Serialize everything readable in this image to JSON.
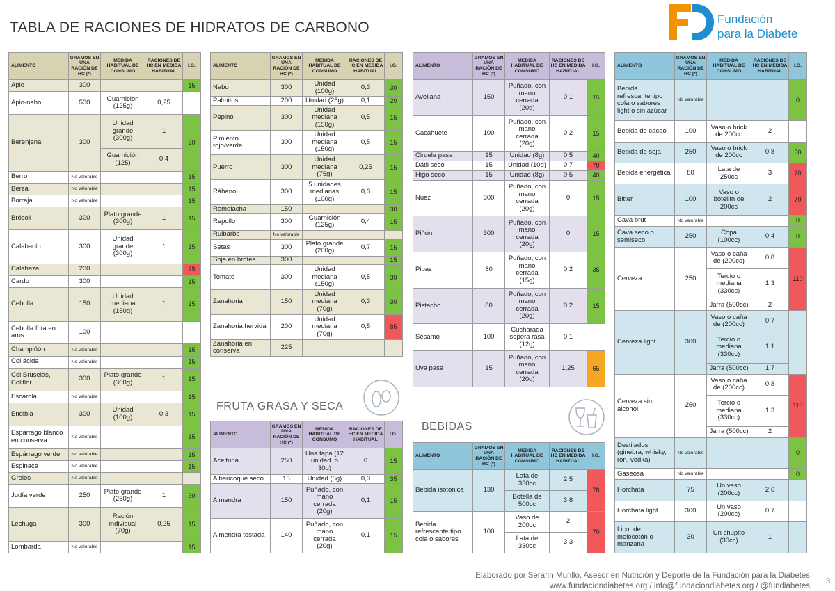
{
  "title": "TABLA DE RACIONES DE HIDRATOS DE CARBONO",
  "logo": {
    "line1": "Fundación",
    "line2": "para la Diabetes"
  },
  "fruit_title": "FRUTA GRASA Y SECA",
  "drinks_title": "BEBIDAS",
  "footer": {
    "line1": "Elaborado por Serafín Murillo, Asesor en Nutrición y Deporte de la Fundación para la Diabetes",
    "line2": "www.fundaciondiabetes.org / info@fundaciondiabetes.org / @fundiabetes",
    "page": "3"
  },
  "tables": [
    {
      "theme": "veg",
      "columns": [
        "ALIMENTO",
        "GRAMOS EN UNA RACIÓN DE HC (*)",
        "MEDIDA HABITUAL DE CONSUMO",
        "RACIONES DE HC EN MEDIDA HABITUAL",
        "I.G."
      ],
      "rows": [
        {
          "name": "Apio",
          "grams": 300,
          "measures": [],
          "ig": 15
        },
        {
          "name": "Apio-nabo",
          "grams": 500,
          "measures": [
            {
              "measure": "Guarnición (125g)",
              "rations": "0,25"
            }
          ],
          "ig": null
        },
        {
          "name": "Berenjena",
          "grams": 300,
          "measures": [
            {
              "measure": "Unidad grande (300g)",
              "rations": "1"
            },
            {
              "measure": "Guarnición (125)",
              "rations": "0,4"
            }
          ],
          "ig": 20
        },
        {
          "name": "Berro",
          "grams": "No valorable",
          "measures": [],
          "ig": 15
        },
        {
          "name": "Berza",
          "grams": "No valorable",
          "measures": [],
          "ig": 15
        },
        {
          "name": "Borraja",
          "grams": "No valorable",
          "measures": [],
          "ig": 15
        },
        {
          "name": "Brócoli",
          "grams": 300,
          "measures": [
            {
              "measure": "Plato grande (300g)",
              "rations": "1"
            }
          ],
          "ig": 15
        },
        {
          "name": "Calabacín",
          "grams": 300,
          "measures": [
            {
              "measure": "Unidad grande (300g)",
              "rations": "1"
            }
          ],
          "ig": 15
        },
        {
          "name": "Calabaza",
          "grams": 200,
          "measures": [],
          "ig": 75
        },
        {
          "name": "Cardo",
          "grams": 300,
          "measures": [],
          "ig": 15
        },
        {
          "name": "Cebolla",
          "grams": 150,
          "measures": [
            {
              "measure": "Unidad mediana (150g)",
              "rations": "1"
            }
          ],
          "ig": 15
        },
        {
          "name": "Cebolla frita en aros",
          "grams": 100,
          "measures": [],
          "ig": null
        },
        {
          "name": "Champiñón",
          "grams": "No valorable",
          "measures": [],
          "ig": 15
        },
        {
          "name": "Col ácida",
          "grams": "No valorable",
          "measures": [],
          "ig": 15
        },
        {
          "name": "Col Bruselas, Coliflor",
          "grams": 300,
          "measures": [
            {
              "measure": "Plato grande (300g)",
              "rations": "1"
            }
          ],
          "ig": 15
        },
        {
          "name": "Escarola",
          "grams": "No valorable",
          "measures": [],
          "ig": 15
        },
        {
          "name": "Endibia",
          "grams": 300,
          "measures": [
            {
              "measure": "Unidad (100g)",
              "rations": "0,3"
            }
          ],
          "ig": 15
        },
        {
          "name": "Espárrago blanco en conserva",
          "grams": "No valorable",
          "measures": [],
          "ig": 15
        },
        {
          "name": "Espárrago verde",
          "grams": "No valorable",
          "measures": [],
          "ig": 15
        },
        {
          "name": "Espinaca",
          "grams": "No valorable",
          "measures": [],
          "ig": 15
        },
        {
          "name": "Grelos",
          "grams": "No valorable",
          "measures": [],
          "ig": null
        },
        {
          "name": "Judía verde",
          "grams": 250,
          "measures": [
            {
              "measure": "Plato grande (250g)",
              "rations": "1"
            }
          ],
          "ig": 30
        },
        {
          "name": "Lechuga",
          "grams": 300,
          "measures": [
            {
              "measure": "Ración individual (70g)",
              "rations": "0,25"
            }
          ],
          "ig": 15
        },
        {
          "name": "Lombarda",
          "grams": "No valorable",
          "measures": [],
          "ig": 15
        }
      ]
    },
    {
      "theme": "veg",
      "columns": [
        "ALIMENTO",
        "GRAMOS EN UNA RACIÓN DE HC (*)",
        "MEDIDA HABITUAL DE CONSUMO",
        "RACIONES DE HC EN MEDIDA HABITUAL",
        "I.G."
      ],
      "rows": [
        {
          "name": "Nabo",
          "grams": 300,
          "measures": [
            {
              "measure": "Unidad (100g)",
              "rations": "0,3"
            }
          ],
          "ig": 30
        },
        {
          "name": "Palmitos",
          "grams": 200,
          "measures": [
            {
              "measure": "Unidad (25g)",
              "rations": "0,1"
            }
          ],
          "ig": 20
        },
        {
          "name": "Pepino",
          "grams": 300,
          "measures": [
            {
              "measure": "Unidad mediana (150g)",
              "rations": "0,5"
            }
          ],
          "ig": 15
        },
        {
          "name": "Pimiento rojo/verde",
          "grams": 300,
          "measures": [
            {
              "measure": "Unidad mediana (150g)",
              "rations": "0,5"
            }
          ],
          "ig": 15
        },
        {
          "name": "Puerro",
          "grams": 300,
          "measures": [
            {
              "measure": "Unidad mediana (75g)",
              "rations": "0,25"
            }
          ],
          "ig": 15
        },
        {
          "name": "Rábano",
          "grams": 300,
          "measures": [
            {
              "measure": "5 unidades medianas (100g)",
              "rations": "0,3"
            }
          ],
          "ig": 15
        },
        {
          "name": "Remolacha",
          "grams": 150,
          "measures": [],
          "ig": 30
        },
        {
          "name": "Repollo",
          "grams": 300,
          "measures": [
            {
              "measure": "Guarnición (125g)",
              "rations": "0,4"
            }
          ],
          "ig": 15
        },
        {
          "name": "Ruibarbo",
          "grams": "No valorable",
          "measures": [],
          "ig": null
        },
        {
          "name": "Setas",
          "grams": 300,
          "measures": [
            {
              "measure": "Plato grande (200g)",
              "rations": "0,7"
            }
          ],
          "ig": 15
        },
        {
          "name": "Soja en brotes",
          "grams": 300,
          "measures": [],
          "ig": 15
        },
        {
          "name": "Tomate",
          "grams": 300,
          "measures": [
            {
              "measure": "Unidad mediana (150g)",
              "rations": "0,5"
            }
          ],
          "ig": 30
        },
        {
          "name": "Zanahoria",
          "grams": 150,
          "measures": [
            {
              "measure": "Unidad mediana (70g)",
              "rations": "0,3"
            }
          ],
          "ig": 30
        },
        {
          "name": "Zanahoria hervida",
          "grams": 200,
          "measures": [
            {
              "measure": "Unidad mediana (70g)",
              "rations": "0,5"
            }
          ],
          "ig": 85
        },
        {
          "name": "Zanahoria en conserva",
          "grams": 225,
          "measures": [],
          "ig": null
        }
      ]
    },
    {
      "theme": "nut",
      "columns": [
        "ALIMENTO",
        "GRAMOS EN UNA RACIÓN DE HC (*)",
        "MEDIDA HABITUAL DE CONSUMO",
        "RACIONES DE HC EN MEDIDA HABITUAL",
        "I.G."
      ],
      "rows": [
        {
          "name": "Aceituna",
          "grams": 250,
          "measures": [
            {
              "measure": "Una tapa (12 unidad. o 30g)",
              "rations": "0"
            }
          ],
          "ig": 15
        },
        {
          "name": "Albaricoque seco",
          "grams": 15,
          "measures": [
            {
              "measure": "Unidad (5g)",
              "rations": "0,3"
            }
          ],
          "ig": 35
        },
        {
          "name": "Almendra",
          "grams": 150,
          "measures": [
            {
              "measure": "Puñado, con mano cerrada (20g)",
              "rations": "0,1"
            }
          ],
          "ig": 15
        },
        {
          "name": "Almendra tostada",
          "grams": 140,
          "measures": [
            {
              "measure": "Puñado, con mano cerrada (20g)",
              "rations": "0,1"
            }
          ],
          "ig": 15
        }
      ]
    },
    {
      "theme": "nut",
      "columns": [
        "ALIMENTO",
        "GRAMOS EN UNA RACIÓN DE HC (*)",
        "MEDIDA HABITUAL DE CONSUMO",
        "RACIONES DE HC EN MEDIDA HABITUAL",
        "I.G."
      ],
      "rows": [
        {
          "name": "Avellana",
          "grams": 150,
          "measures": [
            {
              "measure": "Puñado, con mano cerrada (20g)",
              "rations": "0,1"
            }
          ],
          "ig": 15
        },
        {
          "name": "Cacahuete",
          "grams": 100,
          "measures": [
            {
              "measure": "Puñado, con mano cerrada (20g)",
              "rations": "0,2"
            }
          ],
          "ig": 15
        },
        {
          "name": "Ciruela pasa",
          "grams": 15,
          "measures": [
            {
              "measure": "Unidad (8g)",
              "rations": "0,5"
            }
          ],
          "ig": 40
        },
        {
          "name": "Dátil seco",
          "grams": 15,
          "measures": [
            {
              "measure": "Unidad (10g)",
              "rations": "0,7"
            }
          ],
          "ig": 70
        },
        {
          "name": "Higo seco",
          "grams": 15,
          "measures": [
            {
              "measure": "Unidad (8g)",
              "rations": "0,5"
            }
          ],
          "ig": 40
        },
        {
          "name": "Nuez",
          "grams": 300,
          "measures": [
            {
              "measure": "Puñado, con mano cerrada (20g)",
              "rations": "0"
            }
          ],
          "ig": 15
        },
        {
          "name": "Piñón",
          "grams": 300,
          "measures": [
            {
              "measure": "Puñado, con mano cerrada (20g)",
              "rations": "0"
            }
          ],
          "ig": 15
        },
        {
          "name": "Pipas",
          "grams": 80,
          "measures": [
            {
              "measure": "Puñado, con mano cerrada (15g)",
              "rations": "0,2"
            }
          ],
          "ig": 35
        },
        {
          "name": "Pistacho",
          "grams": 80,
          "measures": [
            {
              "measure": "Puñado, con mano cerrada (20g)",
              "rations": "0,2"
            }
          ],
          "ig": 15
        },
        {
          "name": "Sésamo",
          "grams": 100,
          "measures": [
            {
              "measure": "Cucharada sopera rasa (12g)",
              "rations": "0,1"
            }
          ],
          "ig": null
        },
        {
          "name": "Uva pasa",
          "grams": 15,
          "measures": [
            {
              "measure": "Puñado, con mano cerrada (20g)",
              "rations": "1,25"
            }
          ],
          "ig": 65
        }
      ]
    },
    {
      "theme": "drink",
      "columns": [
        "ALIMENTO",
        "GRAMOS EN UNA RACIÓN DE HC (*)",
        "MEDIDA HABITUAL DE CONSUMO",
        "RACIONES DE HC EN MEDIDA HABITUAL",
        "I.G."
      ],
      "rows": [
        {
          "name": "Bebida isotónica",
          "grams": 130,
          "measures": [
            {
              "measure": "Lata de 330cc",
              "rations": "2,5"
            },
            {
              "measure": "Botella de 500cc",
              "rations": "3,8"
            }
          ],
          "ig": 78
        },
        {
          "name": "Bebida refrescante tipo cola o sabores",
          "grams": 100,
          "measures": [
            {
              "measure": "Vaso de 200cc",
              "rations": "2"
            },
            {
              "measure": "Lata de 330cc",
              "rations": "3,3"
            }
          ],
          "ig": 70
        }
      ]
    },
    {
      "theme": "drink",
      "columns": [
        "ALIMENTO",
        "GRAMOS EN UNA RACIÓN DE HC (*)",
        "MEDIDA HABITUAL DE CONSUMO",
        "RACIONES DE HC EN MEDIDA HABITUAL",
        "I.G."
      ],
      "rows": [
        {
          "name": "Bebida refrescante tipo cola o sabores light o sin azúcar",
          "grams": "No valorable",
          "measures": [],
          "ig": 0
        },
        {
          "name": "Bebida de cacao",
          "grams": 100,
          "measures": [
            {
              "measure": "Vaso o brick de 200cc",
              "rations": "2"
            }
          ],
          "ig": null
        },
        {
          "name": "Bebida de soja",
          "grams": 250,
          "measures": [
            {
              "measure": "Vaso o brick de 200cc",
              "rations": "0,8"
            }
          ],
          "ig": 30
        },
        {
          "name": "Bebida energética",
          "grams": 80,
          "measures": [
            {
              "measure": "Lata de 250cc",
              "rations": "3"
            }
          ],
          "ig": 70
        },
        {
          "name": "Bitter",
          "grams": 100,
          "measures": [
            {
              "measure": "Vaso o botellín de 200cc",
              "rations": "2"
            }
          ],
          "ig": 70
        },
        {
          "name": "Cava brut",
          "grams": "No valorable",
          "measures": [],
          "ig": 0
        },
        {
          "name": "Cava seco o semiseco",
          "grams": 250,
          "measures": [
            {
              "measure": "Copa (100cc)",
              "rations": "0,4"
            }
          ],
          "ig": 0
        },
        {
          "name": "Cerveza",
          "grams": 250,
          "measures": [
            {
              "measure": "Vaso o caña de (200cc)",
              "rations": "0,8"
            },
            {
              "measure": "Tercio o mediana (330cc)",
              "rations": "1,3"
            },
            {
              "measure": "Jarra (500cc)",
              "rations": "2"
            }
          ],
          "ig": 110
        },
        {
          "name": "Cerveza light",
          "grams": 300,
          "measures": [
            {
              "measure": "Vaso o caña de (200cc)",
              "rations": "0,7"
            },
            {
              "measure": "Tercio o mediana (330cc)",
              "rations": "1,1"
            },
            {
              "measure": "Jarra (500cc)",
              "rations": "1,7"
            }
          ],
          "ig": null
        },
        {
          "name": "Cerveza sin alcohol",
          "grams": 250,
          "measures": [
            {
              "measure": "Vaso o caña de (200cc)",
              "rations": "0,8"
            },
            {
              "measure": "Tercio o mediana (330cc)",
              "rations": "1,3"
            },
            {
              "measure": "Jarra (500cc)",
              "rations": "2"
            }
          ],
          "ig": 110
        },
        {
          "name": "Destilados (ginebra, whisky, ron, vodka)",
          "grams": "No valorable",
          "measures": [],
          "ig": 0
        },
        {
          "name": "Gaseosa",
          "grams": "No valorable",
          "measures": [],
          "ig": 0
        },
        {
          "name": "Horchata",
          "grams": 75,
          "measures": [
            {
              "measure": "Un vaso (200cc)",
              "rations": "2,6"
            }
          ],
          "ig": null
        },
        {
          "name": "Horchata light",
          "grams": 300,
          "measures": [
            {
              "measure": "Un vaso (200cc)",
              "rations": "0,7"
            }
          ],
          "ig": null
        },
        {
          "name": "Licor de melocotón o manzana",
          "grams": 30,
          "measures": [
            {
              "measure": "Un chupito (30cc)",
              "rations": "1"
            }
          ],
          "ig": null
        }
      ]
    }
  ]
}
